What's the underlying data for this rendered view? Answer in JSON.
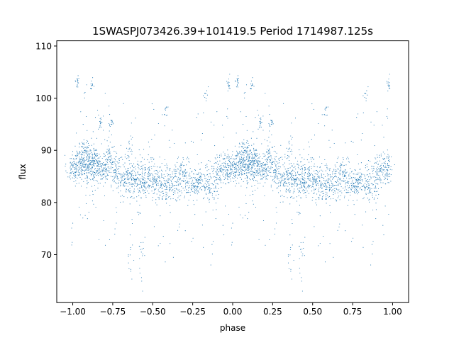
{
  "chart_data": {
    "type": "scatter",
    "title": "1SWASPJ073426.39+101419.5 Period 1714987.125s",
    "xlabel": "phase",
    "ylabel": "flux",
    "xlim": [
      -1.1,
      1.1
    ],
    "ylim": [
      60.8,
      111.0
    ],
    "xticks": [
      -1.0,
      -0.75,
      -0.5,
      -0.25,
      0.0,
      0.25,
      0.5,
      0.75,
      1.0
    ],
    "xtick_labels": [
      "−1.00",
      "−0.75",
      "−0.50",
      "−0.25",
      "0.00",
      "0.25",
      "0.50",
      "0.75",
      "1.00"
    ],
    "yticks": [
      70,
      80,
      90,
      100,
      110
    ],
    "ytick_labels": [
      "70",
      "80",
      "90",
      "100",
      "110"
    ],
    "grid": false,
    "marker_color": "#1f77b4",
    "series": [
      {
        "points_note_excluded": true,
        "clumps": [
          [
            0.0,
            86.5,
            0.02,
            1.3,
            70,
            6
          ],
          [
            0.04,
            87.5,
            0.02,
            1.8,
            80,
            8
          ],
          [
            0.07,
            88.5,
            0.015,
            2.0,
            85,
            10
          ],
          [
            0.1,
            88.0,
            0.015,
            2.2,
            90,
            10
          ],
          [
            0.13,
            87.5,
            0.015,
            2.0,
            80,
            8
          ],
          [
            0.16,
            87.0,
            0.02,
            1.8,
            70,
            8
          ],
          [
            0.19,
            86.5,
            0.02,
            1.8,
            60,
            7
          ],
          [
            0.23,
            87.5,
            0.02,
            2.0,
            70,
            8
          ],
          [
            0.27,
            86.0,
            0.02,
            1.8,
            65,
            7
          ],
          [
            0.31,
            85.5,
            0.02,
            1.8,
            60,
            7
          ],
          [
            0.35,
            85.0,
            0.02,
            1.8,
            60,
            7
          ],
          [
            0.38,
            84.5,
            0.02,
            1.8,
            60,
            7
          ],
          [
            0.42,
            84.0,
            0.02,
            1.8,
            70,
            9
          ],
          [
            0.46,
            84.5,
            0.02,
            1.8,
            65,
            8
          ],
          [
            0.5,
            85.0,
            0.02,
            1.8,
            60,
            7
          ],
          [
            0.54,
            84.0,
            0.02,
            1.8,
            60,
            7
          ],
          [
            0.58,
            83.5,
            0.02,
            1.8,
            60,
            8
          ],
          [
            0.62,
            83.5,
            0.02,
            1.8,
            60,
            9
          ],
          [
            0.66,
            84.5,
            0.02,
            1.8,
            55,
            6
          ],
          [
            0.7,
            85.5,
            0.02,
            1.8,
            55,
            6
          ],
          [
            0.74,
            83.0,
            0.02,
            1.5,
            55,
            6
          ],
          [
            0.78,
            83.5,
            0.02,
            1.5,
            55,
            6
          ],
          [
            0.82,
            84.5,
            0.02,
            1.5,
            50,
            6
          ],
          [
            0.86,
            83.0,
            0.02,
            1.5,
            50,
            6
          ],
          [
            0.9,
            85.5,
            0.02,
            1.5,
            55,
            6
          ],
          [
            0.94,
            86.5,
            0.02,
            1.5,
            55,
            6
          ],
          [
            0.97,
            87.0,
            0.015,
            1.5,
            50,
            5
          ],
          [
            0.025,
            103.0,
            0.006,
            0.8,
            15,
            0
          ],
          [
            0.17,
            95.5,
            0.008,
            0.8,
            15,
            0
          ],
          [
            0.24,
            95.0,
            0.008,
            0.8,
            15,
            0
          ],
          [
            0.12,
            102.5,
            0.006,
            0.8,
            12,
            0
          ],
          [
            0.36,
            91.0,
            0.01,
            1.0,
            12,
            0
          ],
          [
            0.58,
            97.0,
            0.008,
            1.0,
            10,
            0
          ],
          [
            0.83,
            101.0,
            0.008,
            0.8,
            10,
            0
          ],
          [
            0.975,
            102.5,
            0.006,
            0.8,
            15,
            0
          ],
          [
            0.43,
            68.0,
            0.01,
            3.0,
            15,
            0
          ],
          [
            0.36,
            68.0,
            0.01,
            3.0,
            15,
            0
          ],
          [
            0.88,
            80.0,
            0.015,
            2.0,
            10,
            0
          ]
        ]
      }
    ]
  }
}
